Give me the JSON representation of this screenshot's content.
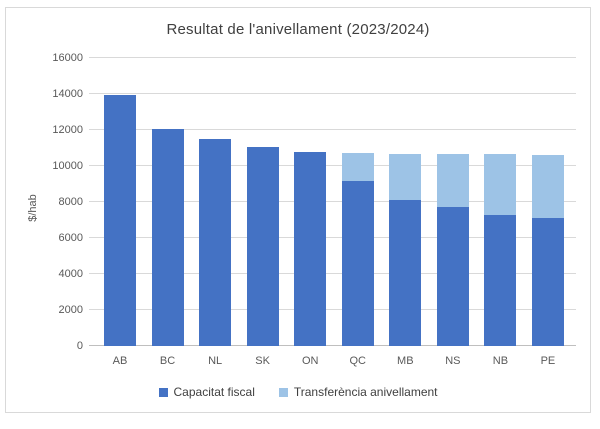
{
  "chart_data": {
    "type": "bar",
    "stacked": true,
    "title": "Resultat de l'anivellament (2023/2024)",
    "xlabel": "",
    "ylabel": "$/hab",
    "categories": [
      "AB",
      "BC",
      "NL",
      "SK",
      "ON",
      "QC",
      "MB",
      "NS",
      "NB",
      "PE"
    ],
    "series": [
      {
        "key": "capacitat-fiscal",
        "name": "Capacitat fiscal",
        "color": "#4472C4",
        "values": [
          13950,
          12050,
          11500,
          11050,
          10800,
          9150,
          8100,
          7750,
          7300,
          7100
        ]
      },
      {
        "key": "transferencia-anivellament",
        "name": "Transferència anivellament",
        "color": "#9DC3E6",
        "values": [
          0,
          0,
          0,
          0,
          0,
          1600,
          2550,
          2900,
          3350,
          3500
        ]
      }
    ],
    "ylim": [
      0,
      16000
    ],
    "yticks": [
      0,
      2000,
      4000,
      6000,
      8000,
      10000,
      12000,
      14000,
      16000
    ],
    "grid": true,
    "legend_position": "bottom"
  },
  "style": {
    "background": "#FFFFFF",
    "frame_border_color": "#D9D9D9",
    "gridline_color": "#D9D9D9",
    "axis_line_color": "#BFBFBF",
    "title_color": "#404040",
    "axis_text_color": "#595959"
  }
}
